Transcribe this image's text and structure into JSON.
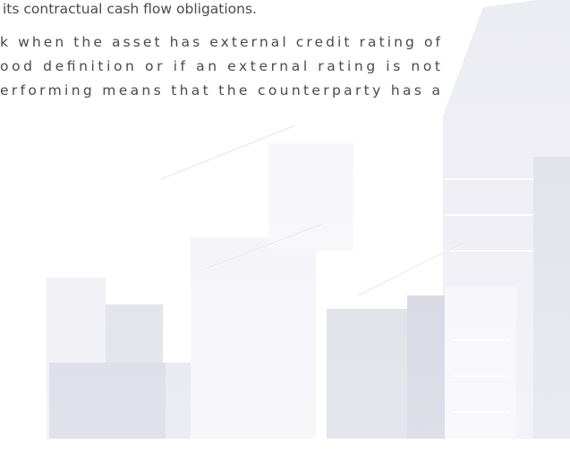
{
  "lines": [
    "its contractual cash flow obligations.",
    "k when the asset has external credit rating of",
    "ood definition or if an external rating is not",
    "erforming means that the counterparty has a"
  ]
}
